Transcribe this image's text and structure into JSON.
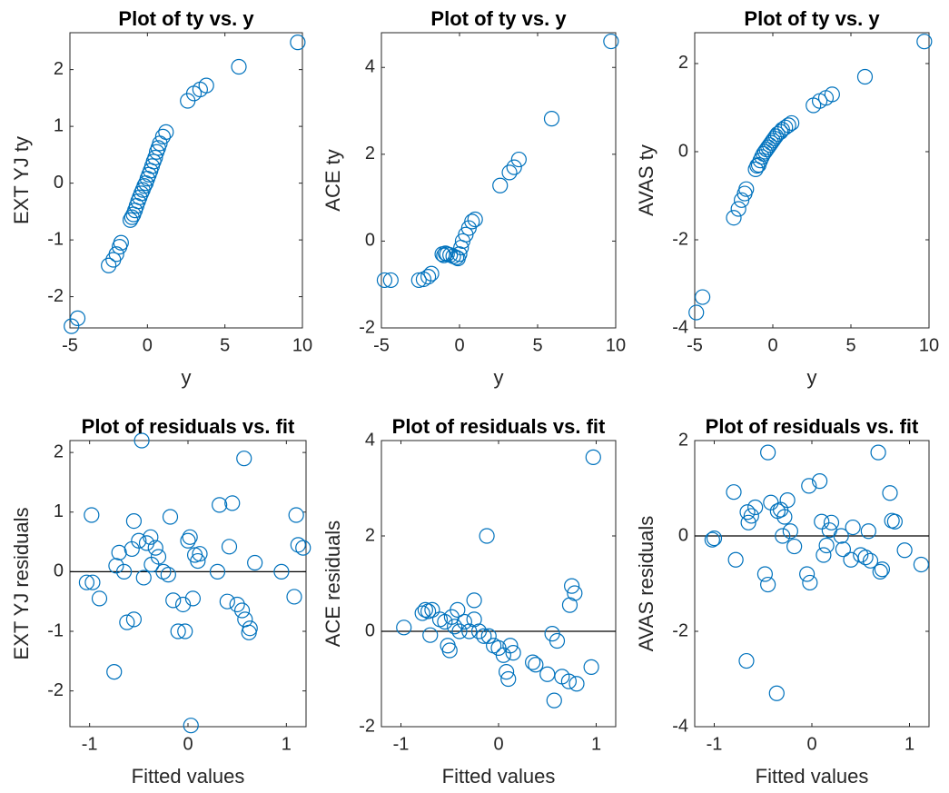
{
  "chart_data": [
    {
      "type": "scatter",
      "title": "Plot of ty vs. y",
      "xlabel": "y",
      "ylabel": "EXT YJ ty",
      "color": "#0072bd",
      "xlim": [
        -5,
        10
      ],
      "ylim": [
        -2.55,
        2.65
      ],
      "xticks": [
        -5,
        0,
        5,
        10
      ],
      "yticks": [
        -2,
        -1,
        0,
        1,
        2
      ],
      "x": [
        -4.9,
        -4.5,
        -2.5,
        -2.2,
        -2,
        -1.8,
        -1.7,
        -1.1,
        -1,
        -0.9,
        -0.8,
        -0.7,
        -0.6,
        -0.5,
        -0.4,
        -0.3,
        -0.2,
        -0.1,
        0,
        0.1,
        0.2,
        0.3,
        0.4,
        0.5,
        0.6,
        0.7,
        0.8,
        1.0,
        1.2,
        2.6,
        3.0,
        3.4,
        3.8,
        5.9,
        9.7
      ],
      "values": [
        -2.52,
        -2.38,
        -1.45,
        -1.35,
        -1.25,
        -1.12,
        -1.05,
        -0.65,
        -0.6,
        -0.55,
        -0.48,
        -0.4,
        -0.32,
        -0.25,
        -0.18,
        -0.12,
        -0.05,
        0,
        0.08,
        0.15,
        0.22,
        0.3,
        0.38,
        0.45,
        0.55,
        0.62,
        0.7,
        0.82,
        0.9,
        1.45,
        1.58,
        1.65,
        1.72,
        2.05,
        2.48
      ]
    },
    {
      "type": "scatter",
      "title": "Plot of ty vs. y",
      "xlabel": "y",
      "ylabel": "ACE ty",
      "color": "#0072bd",
      "xlim": [
        -5,
        10
      ],
      "ylim": [
        -2,
        4.8
      ],
      "xticks": [
        -5,
        0,
        5,
        10
      ],
      "yticks": [
        -2,
        0,
        2,
        4
      ],
      "x": [
        -4.8,
        -4.4,
        -2.6,
        -2.3,
        -2,
        -1.8,
        -1.1,
        -1,
        -0.9,
        -0.8,
        -0.6,
        -0.4,
        -0.2,
        -0.1,
        0,
        0.1,
        0.2,
        0.4,
        0.6,
        0.8,
        1.0,
        2.6,
        3.2,
        3.5,
        3.8,
        5.9,
        9.7
      ],
      "values": [
        -0.9,
        -0.9,
        -0.9,
        -0.88,
        -0.82,
        -0.75,
        -0.3,
        -0.33,
        -0.28,
        -0.3,
        -0.32,
        -0.35,
        -0.38,
        -0.4,
        -0.3,
        -0.15,
        0,
        0.15,
        0.3,
        0.45,
        0.5,
        1.28,
        1.58,
        1.7,
        1.88,
        2.82,
        4.6
      ]
    },
    {
      "type": "scatter",
      "title": "Plot of ty vs. y",
      "xlabel": "y",
      "ylabel": "AVAS ty",
      "color": "#0072bd",
      "xlim": [
        -5,
        10
      ],
      "ylim": [
        -4,
        2.7
      ],
      "xticks": [
        -5,
        0,
        5,
        10
      ],
      "yticks": [
        -4,
        -2,
        0,
        2
      ],
      "x": [
        -4.9,
        -4.5,
        -2.5,
        -2.2,
        -2,
        -1.8,
        -1.7,
        -1.1,
        -1,
        -0.9,
        -0.8,
        -0.7,
        -0.6,
        -0.5,
        -0.4,
        -0.3,
        -0.2,
        -0.1,
        0,
        0.1,
        0.2,
        0.3,
        0.5,
        0.6,
        0.8,
        1.0,
        1.2,
        2.6,
        3.0,
        3.4,
        3.8,
        5.9,
        9.7
      ],
      "values": [
        -3.65,
        -3.3,
        -1.5,
        -1.3,
        -1.1,
        -0.95,
        -0.85,
        -0.4,
        -0.32,
        -0.3,
        -0.2,
        -0.12,
        -0.05,
        0,
        0.05,
        0.1,
        0.15,
        0.2,
        0.25,
        0.3,
        0.35,
        0.4,
        0.45,
        0.5,
        0.55,
        0.6,
        0.65,
        1.05,
        1.15,
        1.22,
        1.3,
        1.7,
        2.5
      ]
    },
    {
      "type": "scatter",
      "title": "Plot of residuals vs. fit",
      "xlabel": "Fitted values",
      "ylabel": "EXT YJ residuals",
      "color": "#0072bd",
      "xlim": [
        -1.2,
        1.2
      ],
      "ylim": [
        -2.6,
        2.2
      ],
      "xticks": [
        -1,
        0,
        1
      ],
      "yticks": [
        -2,
        -1,
        0,
        1,
        2
      ],
      "reference_line": 0,
      "x": [
        -1.03,
        -0.97,
        -0.98,
        -0.9,
        -0.75,
        -0.73,
        -0.7,
        -0.65,
        -0.62,
        -0.57,
        -0.55,
        -0.55,
        -0.5,
        -0.47,
        -0.45,
        -0.42,
        -0.38,
        -0.37,
        -0.33,
        -0.3,
        -0.25,
        -0.2,
        -0.18,
        -0.15,
        -0.1,
        -0.05,
        -0.03,
        0.0,
        0.02,
        0.03,
        0.05,
        0.07,
        0.1,
        0.12,
        0.3,
        0.32,
        0.4,
        0.42,
        0.45,
        0.5,
        0.55,
        0.57,
        0.58,
        0.62,
        0.63,
        0.68,
        0.95,
        1.08,
        1.1,
        1.12,
        1.17
      ],
      "values": [
        -0.18,
        -0.18,
        0.95,
        -0.45,
        -1.68,
        0.1,
        0.32,
        0.0,
        -0.85,
        0.38,
        0.85,
        -0.8,
        0.52,
        2.2,
        -0.1,
        0.48,
        0.58,
        0.12,
        0.4,
        0.25,
        0.0,
        -0.05,
        0.92,
        -0.48,
        -1.0,
        -0.55,
        -1.0,
        0.52,
        0.58,
        -2.58,
        -0.45,
        0.28,
        0.18,
        0.3,
        0.0,
        1.12,
        -0.5,
        0.42,
        1.15,
        -0.55,
        -0.65,
        1.9,
        -0.8,
        -1.02,
        -0.95,
        0.15,
        0.0,
        -0.42,
        0.95,
        0.45,
        0.4
      ]
    },
    {
      "type": "scatter",
      "title": "Plot of residuals vs. fit",
      "xlabel": "Fitted values",
      "ylabel": "ACE residuals",
      "color": "#0072bd",
      "xlim": [
        -1.2,
        1.2
      ],
      "ylim": [
        -2,
        4
      ],
      "xticks": [
        -1,
        0,
        1
      ],
      "yticks": [
        -2,
        0,
        2,
        4
      ],
      "reference_line": 0,
      "x": [
        -0.97,
        -0.78,
        -0.75,
        -0.72,
        -0.7,
        -0.68,
        -0.6,
        -0.55,
        -0.52,
        -0.5,
        -0.48,
        -0.45,
        -0.42,
        -0.4,
        -0.35,
        -0.3,
        -0.25,
        -0.25,
        -0.2,
        -0.15,
        -0.12,
        -0.1,
        -0.05,
        0.0,
        0.05,
        0.08,
        0.1,
        0.12,
        0.15,
        0.35,
        0.38,
        0.5,
        0.55,
        0.57,
        0.6,
        0.65,
        0.72,
        0.73,
        0.75,
        0.78,
        0.8,
        0.95,
        0.97
      ],
      "values": [
        0.08,
        0.38,
        0.45,
        0.42,
        -0.08,
        0.45,
        0.25,
        0.2,
        -0.3,
        -0.4,
        0.3,
        0.1,
        0.45,
        0.0,
        0.2,
        0.0,
        0.25,
        0.65,
        0.0,
        -0.1,
        2.0,
        -0.1,
        -0.3,
        -0.35,
        -0.5,
        -0.85,
        -1.0,
        -0.3,
        -0.45,
        -0.65,
        -0.7,
        -0.9,
        -0.05,
        -1.45,
        -0.2,
        -0.95,
        -1.05,
        0.55,
        0.95,
        0.8,
        -1.1,
        -0.75,
        3.65
      ]
    },
    {
      "type": "scatter",
      "title": "Plot of residuals vs. fit",
      "xlabel": "Fitted values",
      "ylabel": "AVAS residuals",
      "color": "#0072bd",
      "xlim": [
        -1.2,
        1.2
      ],
      "ylim": [
        -4,
        2
      ],
      "xticks": [
        -1,
        0,
        1
      ],
      "yticks": [
        -4,
        -2,
        0,
        2
      ],
      "reference_line": 0,
      "x": [
        -1.02,
        -1.0,
        -0.8,
        -0.78,
        -0.67,
        -0.66,
        -0.65,
        -0.62,
        -0.58,
        -0.48,
        -0.45,
        -0.45,
        -0.42,
        -0.36,
        -0.35,
        -0.32,
        -0.3,
        -0.28,
        -0.25,
        -0.22,
        -0.18,
        -0.05,
        -0.03,
        -0.02,
        0.08,
        0.1,
        0.12,
        0.15,
        0.18,
        0.2,
        0.3,
        0.32,
        0.4,
        0.42,
        0.5,
        0.55,
        0.58,
        0.6,
        0.68,
        0.7,
        0.72,
        0.8,
        0.82,
        0.85,
        0.95,
        1.12
      ],
      "values": [
        -0.08,
        -0.05,
        0.92,
        -0.5,
        -2.62,
        0.5,
        0.28,
        0.42,
        0.6,
        -0.8,
        1.75,
        -1.02,
        0.7,
        -3.3,
        0.52,
        0.55,
        0.0,
        0.4,
        0.75,
        0.1,
        -0.22,
        -0.8,
        1.05,
        -0.98,
        1.15,
        0.3,
        -0.4,
        -0.2,
        0.12,
        0.28,
        0.0,
        -0.28,
        -0.5,
        0.18,
        -0.4,
        -0.45,
        0.1,
        -0.52,
        1.75,
        -0.75,
        -0.7,
        0.9,
        0.32,
        0.3,
        -0.3,
        -0.6
      ]
    }
  ]
}
